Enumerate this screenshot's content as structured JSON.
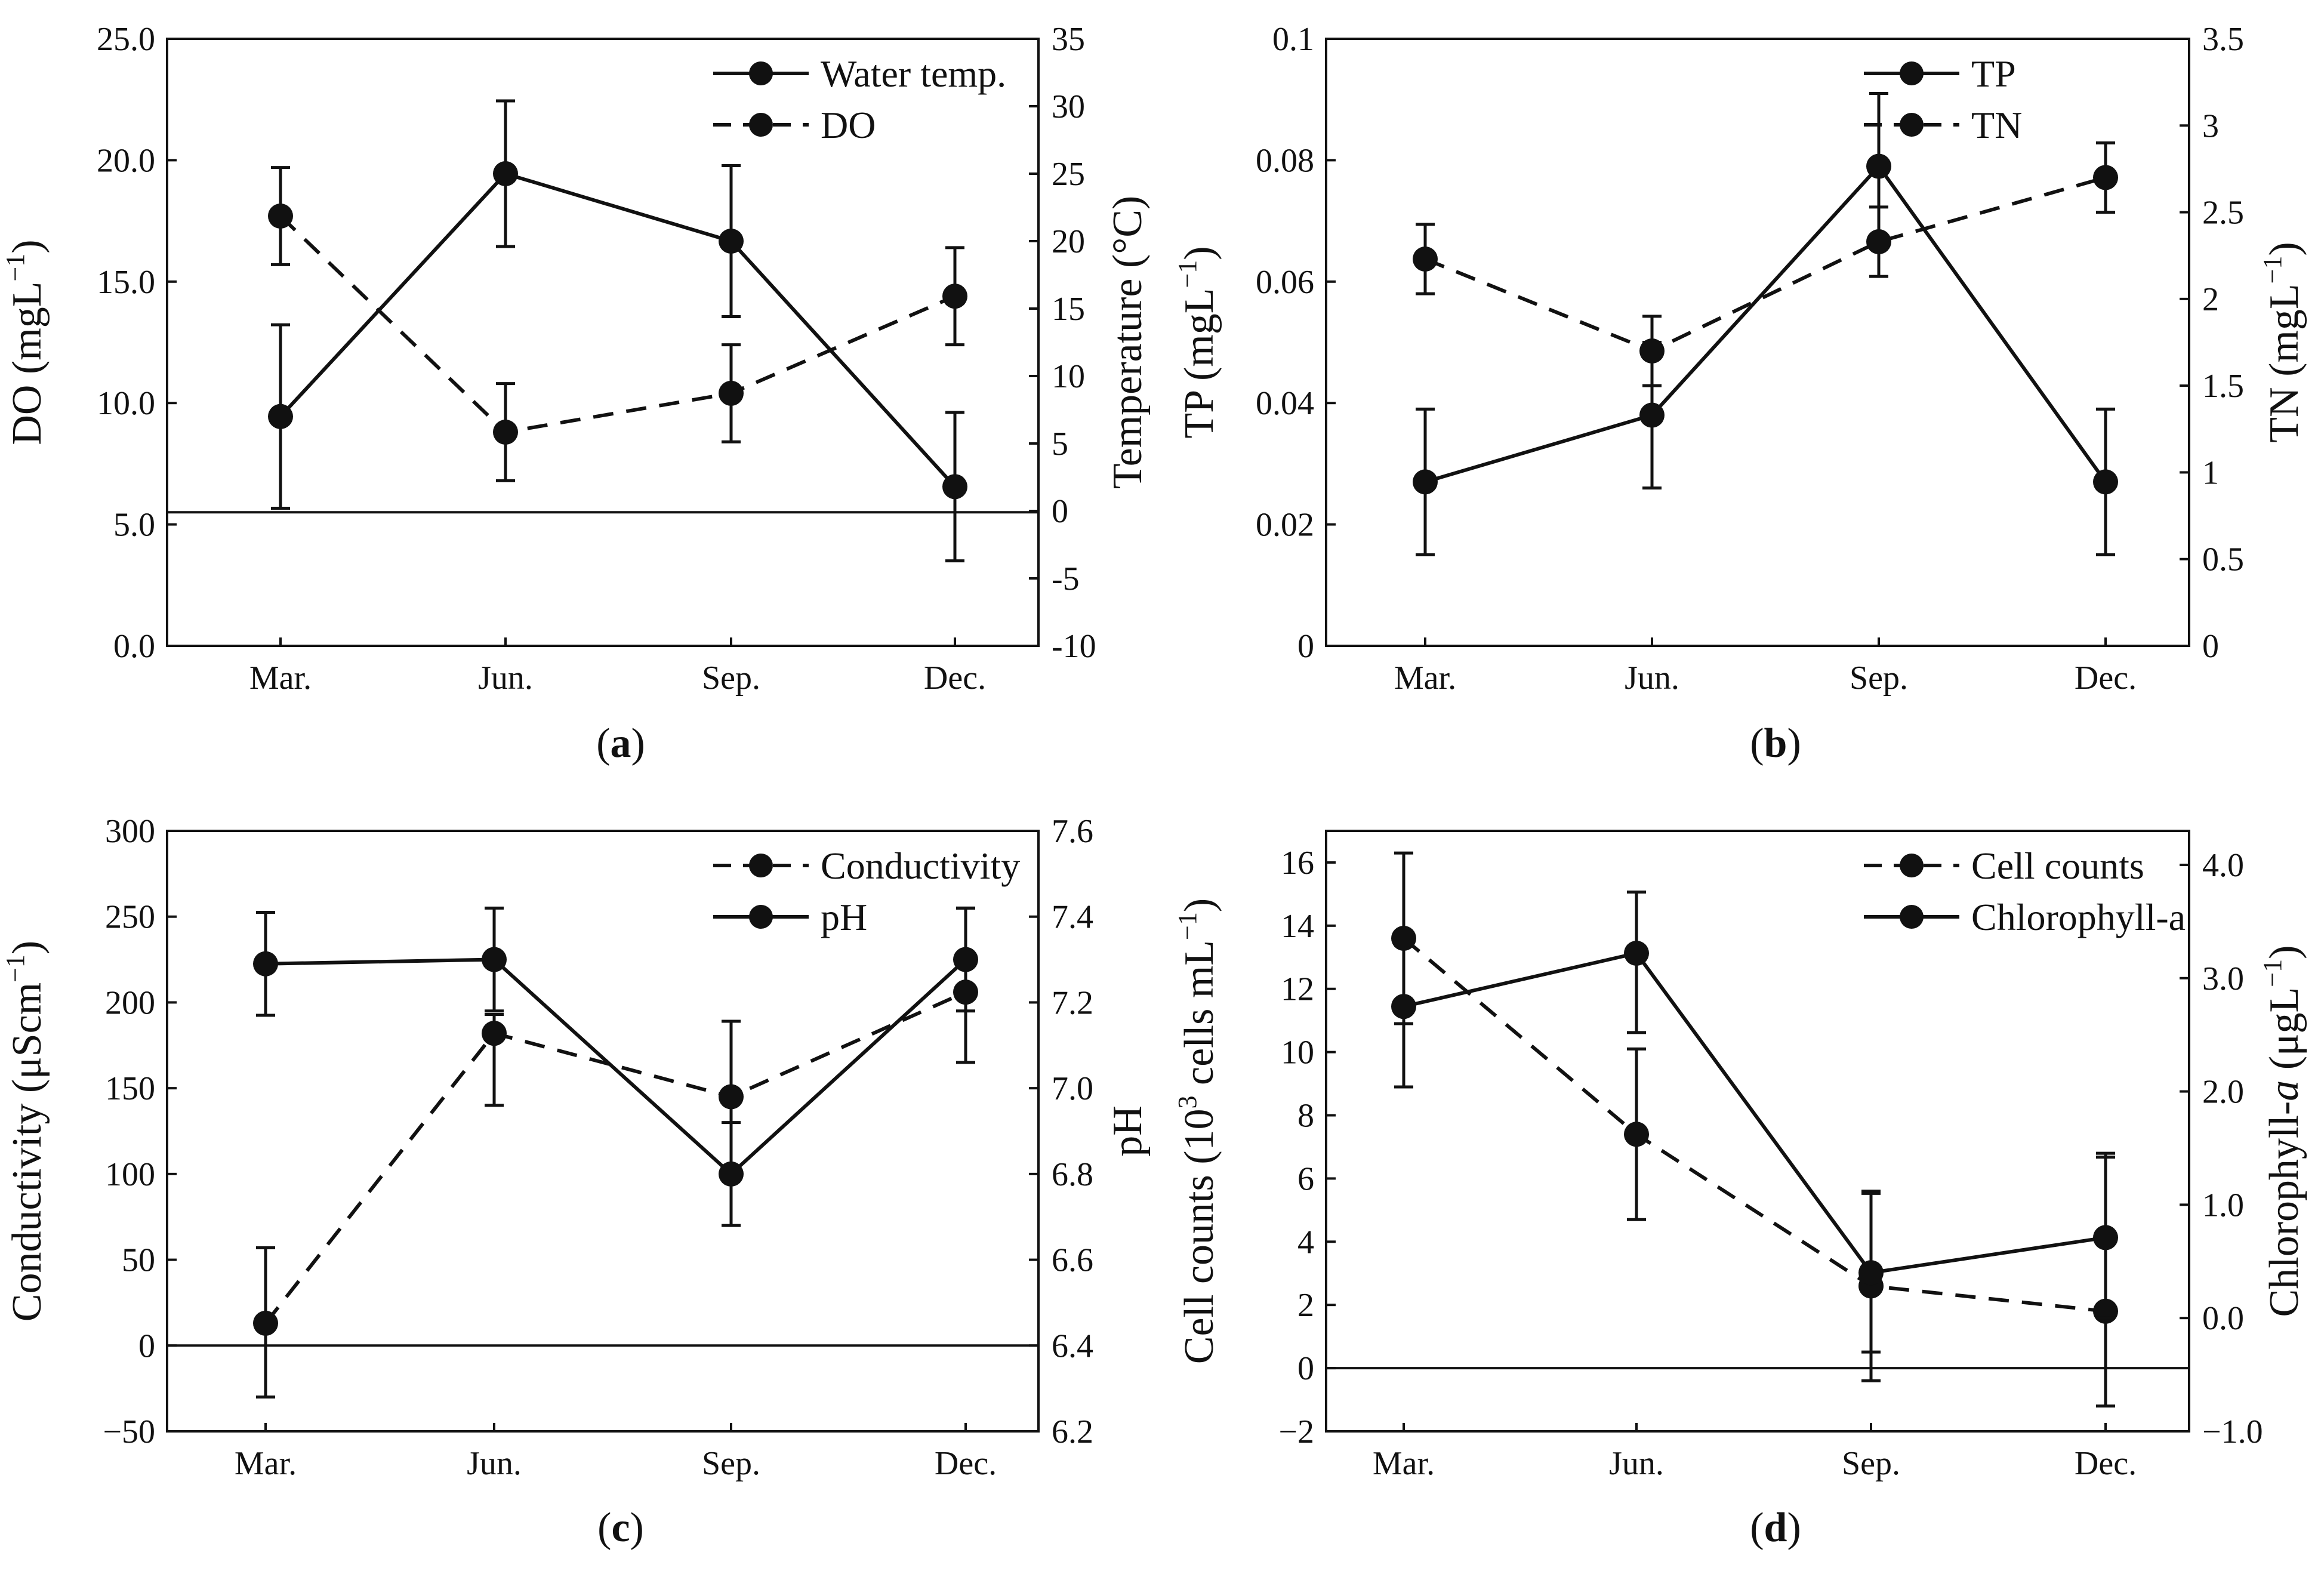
{
  "colors": {
    "ink": "#111111",
    "background": "#ffffff"
  },
  "chart_data": [
    {
      "id": "a",
      "panel_label": "a",
      "type": "line",
      "categories": [
        "Mar.",
        "Jun.",
        "Sep.",
        "Dec."
      ],
      "left_axis": {
        "label_main": "DO (mgL",
        "label_sup": "−1",
        "label_close": ")",
        "range": [
          0,
          25
        ],
        "ticks": [
          0,
          5,
          10,
          15,
          20,
          25
        ],
        "tick_labels": [
          "0.0",
          "5.0",
          "10.0",
          "15.0",
          "20.0",
          "25.0"
        ]
      },
      "right_axis": {
        "label_main": "Temperature  (°C)",
        "label_sup": "",
        "label_close": "",
        "range": [
          -10,
          35
        ],
        "ticks": [
          -10,
          -5,
          0,
          5,
          10,
          15,
          20,
          25,
          30,
          35
        ],
        "tick_labels": [
          "-10",
          "-5",
          "0",
          "5",
          "10",
          "15",
          "20",
          "25",
          "30",
          "35"
        ]
      },
      "baseline": {
        "axis": "left",
        "value": 5.5
      },
      "legend_position": "top-right",
      "series": [
        {
          "name": "Water temp.",
          "axis": "right",
          "style": "solid",
          "values": [
            7,
            25,
            20,
            1.8
          ],
          "err_high": [
            13.8,
            30.4,
            25.6,
            7.3
          ],
          "err_low": [
            0.2,
            19.6,
            14.4,
            -3.7
          ]
        },
        {
          "name": "DO",
          "axis": "left",
          "style": "dashed",
          "values": [
            17.7,
            8.8,
            10.4,
            14.4
          ],
          "err_high": [
            19.7,
            10.8,
            12.4,
            16.4
          ],
          "err_low": [
            15.7,
            6.8,
            8.4,
            12.4
          ]
        }
      ]
    },
    {
      "id": "b",
      "panel_label": "b",
      "type": "line",
      "categories": [
        "Mar.",
        "Jun.",
        "Sep.",
        "Dec."
      ],
      "left_axis": {
        "label_main": "TP (mgL",
        "label_sup": "−1",
        "label_close": ")",
        "range": [
          0,
          0.1
        ],
        "ticks": [
          0,
          0.02,
          0.04,
          0.06,
          0.08,
          0.1
        ],
        "tick_labels": [
          "0",
          "0.02",
          "0.04",
          "0.06",
          "0.08",
          "0.1"
        ]
      },
      "right_axis": {
        "label_main": "TN (mgL",
        "label_sup": "−1",
        "label_close": ")",
        "range": [
          0,
          3.5
        ],
        "ticks": [
          0,
          0.5,
          1,
          1.5,
          2,
          2.5,
          3,
          3.5
        ],
        "tick_labels": [
          "0",
          "0.5",
          "1",
          "1.5",
          "2",
          "2.5",
          "3",
          "3.5"
        ]
      },
      "baseline": null,
      "legend_position": "top-right",
      "series": [
        {
          "name": "TP",
          "axis": "left",
          "style": "solid",
          "values": [
            0.027,
            0.038,
            0.079,
            0.027
          ],
          "err_high": [
            0.039,
            0.05,
            0.091,
            0.039
          ],
          "err_low": [
            0.015,
            0.026,
            0.067,
            0.015
          ]
        },
        {
          "name": "TN",
          "axis": "right",
          "style": "dashed",
          "values": [
            2.23,
            1.7,
            2.33,
            2.7
          ],
          "err_high": [
            2.43,
            1.9,
            2.53,
            2.9
          ],
          "err_low": [
            2.03,
            1.5,
            2.13,
            2.5
          ]
        }
      ]
    },
    {
      "id": "c",
      "panel_label": "c",
      "type": "line",
      "categories": [
        "Mar.",
        "Jun.",
        "Sep.",
        "Dec."
      ],
      "left_axis": {
        "label_main": "Conductivity (μScm",
        "label_sup": "−1",
        "label_close": ")",
        "range": [
          -50,
          300
        ],
        "ticks": [
          -50,
          0,
          50,
          100,
          150,
          200,
          250,
          300
        ],
        "tick_labels": [
          "−50",
          "0",
          "50",
          "100",
          "150",
          "200",
          "250",
          "300"
        ]
      },
      "right_axis": {
        "label_main": "pH",
        "label_sup": "",
        "label_close": "",
        "range": [
          6.2,
          7.6
        ],
        "ticks": [
          6.2,
          6.4,
          6.6,
          6.8,
          7.0,
          7.2,
          7.4,
          7.6
        ],
        "tick_labels": [
          "6.2",
          "6.4",
          "6.6",
          "6.8",
          "7.0",
          "7.2",
          "7.4",
          "7.6"
        ]
      },
      "baseline": {
        "axis": "left",
        "value": 0
      },
      "legend_position": "top-right",
      "series": [
        {
          "name": "Conductivity",
          "axis": "left",
          "style": "dashed",
          "values": [
            13,
            182,
            145,
            206
          ],
          "err_high": [
            57,
            193,
            189,
            255
          ],
          "err_low": [
            -30,
            140,
            100,
            165
          ]
        },
        {
          "name": "pH",
          "axis": "right",
          "style": "solid",
          "values": [
            7.29,
            7.3,
            6.8,
            7.3
          ],
          "err_high": [
            7.41,
            7.42,
            6.92,
            7.42
          ],
          "err_low": [
            7.17,
            7.18,
            6.68,
            7.18
          ]
        }
      ]
    },
    {
      "id": "d",
      "panel_label": "d",
      "type": "line",
      "categories": [
        "Mar.",
        "Jun.",
        "Sep.",
        "Dec."
      ],
      "left_axis": {
        "label_main": "Cell counts (10",
        "label_sup": "3",
        "label_close": " cells mL",
        "label_sup2": "−1",
        "label_close2": ")",
        "range": [
          -2,
          17
        ],
        "ticks": [
          -2,
          0,
          2,
          4,
          6,
          8,
          10,
          12,
          14,
          16
        ],
        "tick_labels": [
          "−2",
          "0",
          "2",
          "4",
          "6",
          "8",
          "10",
          "12",
          "14",
          "16"
        ]
      },
      "right_axis": {
        "label_main": "Chlorophyll-",
        "label_italic": "a",
        "label_close": " (μgL",
        "label_sup": "−1",
        "label_close2": ")",
        "range": [
          -1.0,
          4.3
        ],
        "ticks": [
          -1.0,
          0.0,
          1.0,
          2.0,
          3.0,
          4.0
        ],
        "tick_labels": [
          "−1.0",
          "0.0",
          "1.0",
          "2.0",
          "3.0",
          "4.0"
        ]
      },
      "baseline": {
        "axis": "left",
        "value": 0
      },
      "legend_position": "top-right",
      "series": [
        {
          "name": "Cell counts",
          "axis": "left",
          "style": "dashed",
          "values": [
            13.6,
            7.4,
            2.6,
            1.8
          ],
          "err_high": [
            16.3,
            10.1,
            5.6,
            6.8
          ],
          "err_low": [
            10.9,
            4.7,
            -0.4,
            -1.2
          ]
        },
        {
          "name": "Chlorophyll-a",
          "axis": "right",
          "style": "solid",
          "values": [
            2.75,
            3.22,
            0.4,
            0.71
          ],
          "err_high": [
            3.29,
            3.76,
            1.1,
            1.42
          ],
          "err_low": [
            2.04,
            2.52,
            -0.3,
            0.0
          ]
        }
      ]
    }
  ]
}
